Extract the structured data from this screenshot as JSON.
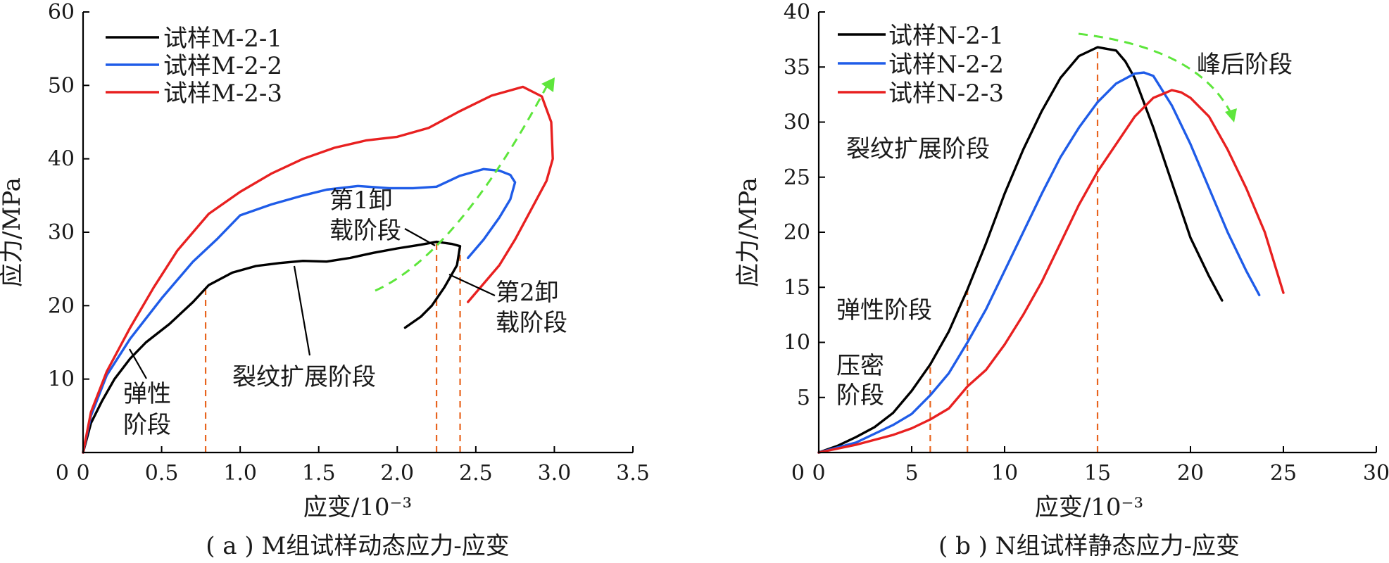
{
  "chart_data": [
    {
      "id": "a",
      "type": "line",
      "caption": "( a ) M组试样动态应力-应变",
      "xlabel": "应变/10⁻³",
      "ylabel": "应力/MPa",
      "xlim": [
        0,
        3.5
      ],
      "ylim": [
        0,
        60
      ],
      "xticks": [
        "0",
        "0.5",
        "1.0",
        "1.5",
        "2.0",
        "2.5",
        "3.0",
        "3.5"
      ],
      "yticks": [
        "",
        "10",
        "20",
        "30",
        "40",
        "50",
        "60"
      ],
      "grid": false,
      "legend_position": "top-left",
      "series": [
        {
          "name": "试样M-2-1",
          "color": "#000000",
          "points": [
            [
              0,
              0
            ],
            [
              0.05,
              4
            ],
            [
              0.12,
              7
            ],
            [
              0.2,
              10
            ],
            [
              0.3,
              12.8
            ],
            [
              0.4,
              15
            ],
            [
              0.55,
              17.5
            ],
            [
              0.7,
              20.5
            ],
            [
              0.8,
              22.8
            ],
            [
              0.95,
              24.5
            ],
            [
              1.1,
              25.4
            ],
            [
              1.25,
              25.8
            ],
            [
              1.4,
              26.1
            ],
            [
              1.55,
              26.0
            ],
            [
              1.7,
              26.5
            ],
            [
              1.85,
              27.2
            ],
            [
              2.0,
              27.8
            ],
            [
              2.15,
              28.3
            ],
            [
              2.25,
              28.7
            ],
            [
              2.35,
              28.4
            ],
            [
              2.4,
              28.1
            ],
            [
              2.38,
              25.5
            ],
            [
              2.3,
              22.5
            ],
            [
              2.22,
              20.0
            ],
            [
              2.15,
              18.5
            ],
            [
              2.05,
              17.0
            ]
          ]
        },
        {
          "name": "试样M-2-2",
          "color": "#1f5ce8",
          "points": [
            [
              0,
              0
            ],
            [
              0.05,
              5
            ],
            [
              0.15,
              10.5
            ],
            [
              0.3,
              15.5
            ],
            [
              0.5,
              21
            ],
            [
              0.7,
              26
            ],
            [
              0.85,
              29
            ],
            [
              1.0,
              32.3
            ],
            [
              1.2,
              33.8
            ],
            [
              1.4,
              35
            ],
            [
              1.55,
              35.8
            ],
            [
              1.75,
              36.3
            ],
            [
              1.95,
              36.0
            ],
            [
              2.1,
              36.0
            ],
            [
              2.25,
              36.2
            ],
            [
              2.4,
              37.7
            ],
            [
              2.55,
              38.6
            ],
            [
              2.65,
              38.4
            ],
            [
              2.72,
              37.8
            ],
            [
              2.75,
              36.8
            ],
            [
              2.72,
              34.5
            ],
            [
              2.65,
              32.0
            ],
            [
              2.55,
              29.0
            ],
            [
              2.45,
              26.5
            ]
          ]
        },
        {
          "name": "试样M-2-3",
          "color": "#e82020",
          "points": [
            [
              0,
              0
            ],
            [
              0.05,
              5.5
            ],
            [
              0.15,
              11
            ],
            [
              0.3,
              17
            ],
            [
              0.45,
              22.5
            ],
            [
              0.6,
              27.5
            ],
            [
              0.8,
              32.5
            ],
            [
              1.0,
              35.5
            ],
            [
              1.2,
              38
            ],
            [
              1.4,
              40
            ],
            [
              1.6,
              41.5
            ],
            [
              1.8,
              42.5
            ],
            [
              2.0,
              43
            ],
            [
              2.2,
              44.2
            ],
            [
              2.4,
              46.5
            ],
            [
              2.6,
              48.6
            ],
            [
              2.8,
              49.8
            ],
            [
              2.92,
              48.5
            ],
            [
              2.98,
              45
            ],
            [
              2.99,
              40
            ],
            [
              2.95,
              37
            ],
            [
              2.85,
              33
            ],
            [
              2.75,
              29
            ],
            [
              2.65,
              25.5
            ],
            [
              2.55,
              23
            ],
            [
              2.45,
              20.5
            ]
          ]
        }
      ],
      "dashed_x": [
        0.78,
        2.25,
        2.4
      ],
      "annotations": [
        "弹性",
        "阶段",
        "裂纹扩展阶段",
        "第1卸",
        "载阶段",
        "第2卸",
        "载阶段"
      ]
    },
    {
      "id": "b",
      "type": "line",
      "caption": "( b ) N组试样静态应力-应变",
      "xlabel": "应变/10⁻³",
      "ylabel": "应力/MPa",
      "xlim": [
        0,
        30
      ],
      "ylim": [
        0,
        40
      ],
      "xticks": [
        "0",
        "5",
        "10",
        "15",
        "20",
        "25",
        "30"
      ],
      "yticks": [
        "",
        "5",
        "10",
        "15",
        "20",
        "25",
        "30",
        "35",
        "40"
      ],
      "grid": false,
      "legend_position": "top-left",
      "series": [
        {
          "name": "试样N-2-1",
          "color": "#000000",
          "points": [
            [
              0,
              0
            ],
            [
              1,
              0.6
            ],
            [
              2,
              1.4
            ],
            [
              3,
              2.3
            ],
            [
              4,
              3.6
            ],
            [
              5,
              5.6
            ],
            [
              6,
              8.0
            ],
            [
              7,
              11
            ],
            [
              8,
              14.8
            ],
            [
              9,
              19
            ],
            [
              10,
              23.5
            ],
            [
              11,
              27.5
            ],
            [
              12,
              31
            ],
            [
              13,
              34
            ],
            [
              14,
              36
            ],
            [
              15,
              36.8
            ],
            [
              16,
              36.5
            ],
            [
              16.5,
              35.5
            ],
            [
              17,
              34
            ],
            [
              18,
              29.5
            ],
            [
              19,
              24.5
            ],
            [
              20,
              19.5
            ],
            [
              21,
              16
            ],
            [
              21.7,
              13.8
            ]
          ]
        },
        {
          "name": "试样N-2-2",
          "color": "#1f5ce8",
          "points": [
            [
              0,
              0
            ],
            [
              2,
              0.9
            ],
            [
              4,
              2.5
            ],
            [
              5,
              3.5
            ],
            [
              6,
              5.2
            ],
            [
              7,
              7.2
            ],
            [
              8,
              10
            ],
            [
              9,
              13
            ],
            [
              10,
              16.5
            ],
            [
              11,
              20
            ],
            [
              12,
              23.5
            ],
            [
              13,
              26.8
            ],
            [
              14,
              29.5
            ],
            [
              15,
              31.8
            ],
            [
              16,
              33.5
            ],
            [
              17,
              34.4
            ],
            [
              17.5,
              34.5
            ],
            [
              18,
              34.2
            ],
            [
              19,
              31.5
            ],
            [
              20,
              28
            ],
            [
              21,
              24
            ],
            [
              22,
              20
            ],
            [
              23,
              16.5
            ],
            [
              23.7,
              14.3
            ]
          ]
        },
        {
          "name": "试样N-2-3",
          "color": "#e82020",
          "points": [
            [
              0,
              0
            ],
            [
              2,
              0.7
            ],
            [
              4,
              1.6
            ],
            [
              5,
              2.2
            ],
            [
              6,
              3.0
            ],
            [
              7,
              4.0
            ],
            [
              7.5,
              5.0
            ],
            [
              8,
              6.0
            ],
            [
              9,
              7.5
            ],
            [
              10,
              9.8
            ],
            [
              11,
              12.5
            ],
            [
              12,
              15.5
            ],
            [
              13,
              19
            ],
            [
              14,
              22.5
            ],
            [
              15,
              25.5
            ],
            [
              16,
              28
            ],
            [
              17,
              30.5
            ],
            [
              18,
              32.2
            ],
            [
              19,
              32.9
            ],
            [
              19.5,
              32.7
            ],
            [
              20,
              32.2
            ],
            [
              21,
              30.5
            ],
            [
              22,
              27.5
            ],
            [
              23,
              24
            ],
            [
              24,
              20
            ],
            [
              25,
              14.5
            ]
          ]
        }
      ],
      "dashed_x": [
        6,
        8,
        15
      ],
      "annotations": [
        "峰后阶段",
        "裂纹扩展阶段",
        "弹性阶段",
        "压密",
        "阶段"
      ]
    }
  ]
}
